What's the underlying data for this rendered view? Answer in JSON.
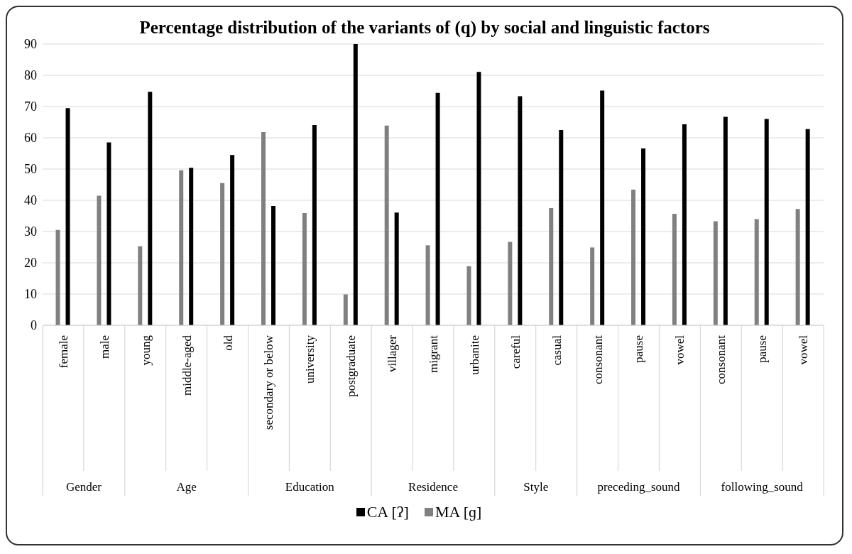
{
  "chart_data": {
    "type": "bar",
    "title": "Percentage distribution of the variants of (q) by social and linguistic factors",
    "categories": [
      "female",
      "male",
      "young",
      "middle-aged",
      "old",
      "secondary or below",
      "university",
      "postgraduate",
      "villager",
      "migrant",
      "urbanite",
      "careful",
      "casual",
      "consonant",
      "pause",
      "vowel",
      "consonant",
      "pause",
      "vowel"
    ],
    "annotations": [
      "Gender",
      "Age",
      "Education",
      "Residence",
      "Style",
      "preceding_sound",
      "following_sound"
    ],
    "series": [
      {
        "name": "MA [ɡ]",
        "color": "#808080",
        "values": [
          30.5,
          41.5,
          25.3,
          49.6,
          45.5,
          61.8,
          35.9,
          9.9,
          63.9,
          25.6,
          18.9,
          26.7,
          37.5,
          24.9,
          43.4,
          35.7,
          33.3,
          34,
          37.2
        ]
      },
      {
        "name": "CA [ʔ]",
        "color": "#000000",
        "values": [
          69.5,
          58.5,
          74.7,
          50.4,
          54.5,
          38.2,
          64.1,
          90,
          36.1,
          74.4,
          81.1,
          73.3,
          62.5,
          75.1,
          56.6,
          64.3,
          66.7,
          66,
          62.8
        ]
      }
    ],
    "ylim": [
      0,
      90
    ],
    "yticks": [
      0,
      10,
      20,
      30,
      40,
      50,
      60,
      70,
      80,
      90
    ],
    "grid": "y",
    "legend": "bottom"
  }
}
